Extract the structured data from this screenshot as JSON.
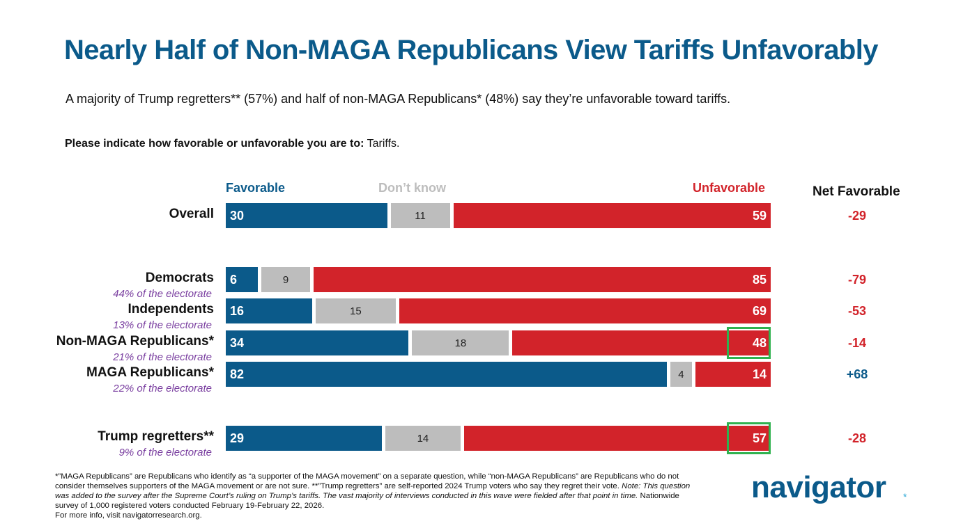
{
  "title": "Nearly Half of Non-MAGA Republicans View Tariffs Unfavorably",
  "subtitle": "A majority of Trump regretters** (57%) and half of non-MAGA Republicans* (48%) say they’re unfavorable toward tariffs.",
  "question": {
    "prompt": "Please indicate how favorable or unfavorable you are to:",
    "item": "Tariffs."
  },
  "chart_data": {
    "type": "bar",
    "subtype": "stacked-horizontal-100",
    "title": "Please indicate how favorable or unfavorable you are to: Tariffs.",
    "series": [
      {
        "name": "Favorable",
        "color": "#0b5a8a",
        "values": [
          30,
          6,
          16,
          34,
          82,
          29
        ]
      },
      {
        "name": "Don’t know",
        "color": "#bdbdbd",
        "values": [
          11,
          9,
          15,
          18,
          4,
          14
        ]
      },
      {
        "name": "Unfavorable",
        "color": "#d2232a",
        "values": [
          59,
          85,
          69,
          48,
          14,
          57
        ]
      }
    ],
    "net_label": "Net Favorable",
    "rows": [
      {
        "label": "Overall",
        "sub": "",
        "fav": 30,
        "dk": 11,
        "unf": 59,
        "net": "-29",
        "highlight": false
      },
      {
        "label": "Democrats",
        "sub": "44% of the electorate",
        "fav": 6,
        "dk": 9,
        "unf": 85,
        "net": "-79",
        "highlight": false
      },
      {
        "label": "Independents",
        "sub": "13% of the electorate",
        "fav": 16,
        "dk": 15,
        "unf": 69,
        "net": "-53",
        "highlight": false
      },
      {
        "label": "Non-MAGA Republicans*",
        "sub": "21% of the electorate",
        "fav": 34,
        "dk": 18,
        "unf": 48,
        "net": "-14",
        "highlight": true
      },
      {
        "label": "MAGA Republicans*",
        "sub": "22% of the electorate",
        "fav": 82,
        "dk": 4,
        "unf": 14,
        "net": "+68",
        "highlight": false
      },
      {
        "label": "Trump regretters**",
        "sub": "9% of the electorate",
        "fav": 29,
        "dk": 14,
        "unf": 57,
        "net": "-28",
        "highlight": true
      }
    ],
    "colors": {
      "favorable": "#0b5a8a",
      "dont_know": "#bdbdbd",
      "unfavorable": "#d2232a",
      "highlight": "#2fb24f",
      "sub_label": "#7a3fa0"
    }
  },
  "footnote": {
    "part1": "*”MAGA Republicans” are Republicans who identify as “a supporter of the MAGA movement” on a separate question, while “non-MAGA Republicans” are Republicans who do not consider themselves supporters of the MAGA movement or are not sure. **”Trump regretters” are self-reported 2024 Trump voters who say they regret their vote. ",
    "note_label": "Note:",
    "note_text": " This question was added to the survey after the Supreme Court’s ruling on Trump’s tariffs. The vast majority of interviews conducted in this wave were fielded after that point in time.",
    "part2": " Nationwide survey of 1,000 registered voters conducted February 19-February 22, 2026.",
    "more_info": "For more info, visit navigatorresearch.org."
  },
  "logo": {
    "text": "navigator",
    "star": "*"
  }
}
